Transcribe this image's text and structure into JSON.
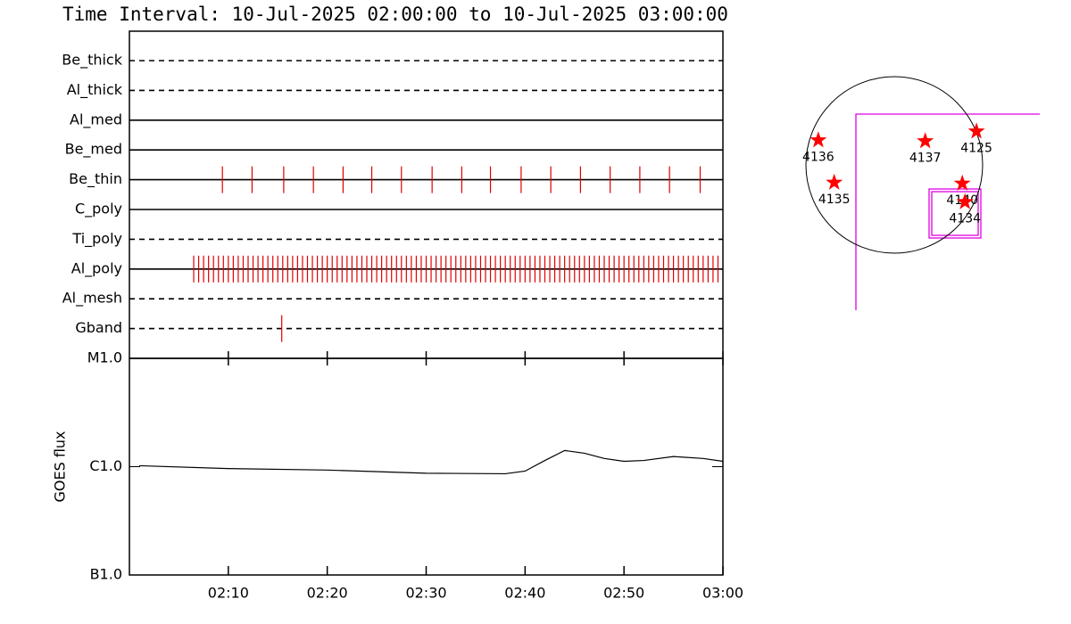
{
  "chart_data": [
    {
      "type": "timeline",
      "title": "Time Interval: 10-Jul-2025 02:00:00 to 10-Jul-2025 03:00:00",
      "xlim": [
        0,
        60
      ],
      "rows": [
        {
          "name": "Be_thick",
          "style": "dashed",
          "events": []
        },
        {
          "name": "Al_thick",
          "style": "dashed",
          "events": []
        },
        {
          "name": "Al_med",
          "style": "solid",
          "events": []
        },
        {
          "name": "Be_med",
          "style": "solid",
          "events": []
        },
        {
          "name": "Be_thin",
          "style": "solid",
          "events": [
            9.4,
            12.4,
            15.6,
            18.6,
            21.6,
            24.5,
            27.5,
            30.6,
            33.6,
            36.5,
            39.6,
            42.6,
            45.6,
            48.6,
            51.6,
            54.6,
            57.7
          ]
        },
        {
          "name": "C_poly",
          "style": "solid",
          "events": []
        },
        {
          "name": "Ti_poly",
          "style": "dashed",
          "events": []
        },
        {
          "name": "Al_poly",
          "style": "solid",
          "events": [
            6.5,
            7,
            7.5,
            8,
            8.5,
            9,
            9.5,
            10,
            10.5,
            11,
            11.5,
            12,
            12.5,
            13,
            13.5,
            14,
            14.5,
            15,
            15.5,
            16,
            16.5,
            17,
            17.5,
            18,
            18.5,
            19,
            19.5,
            20,
            20.5,
            21,
            21.5,
            22,
            22.5,
            23,
            23.5,
            24,
            24.5,
            25,
            25.5,
            26,
            26.5,
            27,
            27.5,
            28,
            28.5,
            29,
            29.5,
            30,
            30.5,
            31,
            31.5,
            32,
            32.5,
            33,
            33.5,
            34,
            34.5,
            35,
            35.5,
            36,
            36.5,
            37,
            37.5,
            38,
            38.5,
            39,
            39.5,
            40,
            40.5,
            41,
            41.5,
            42,
            42.5,
            43,
            43.5,
            44,
            44.5,
            45,
            45.5,
            46,
            46.5,
            47,
            47.5,
            48,
            48.5,
            49,
            49.5,
            50,
            50.5,
            51,
            51.5,
            52,
            52.5,
            53,
            53.5,
            54,
            54.5,
            55,
            55.5,
            56,
            56.5,
            57,
            57.5,
            58,
            58.5,
            59,
            59.5
          ]
        },
        {
          "name": "Al_mesh",
          "style": "dashed",
          "events": []
        },
        {
          "name": "Gband",
          "style": "dashed",
          "events": [
            15.4
          ]
        }
      ],
      "color": "#e00000"
    },
    {
      "type": "line",
      "ylabel": "GOES flux",
      "log_y": true,
      "xlim": [
        0,
        60
      ],
      "ylim": [
        1e-07,
        1e-05
      ],
      "yticks": [
        {
          "value": 1e-07,
          "label": "B1.0"
        },
        {
          "value": 1e-06,
          "label": "C1.0"
        },
        {
          "value": 1e-05,
          "label": "M1.0"
        }
      ],
      "xticks": [
        {
          "value": 10,
          "label": "02:10"
        },
        {
          "value": 20,
          "label": "02:20"
        },
        {
          "value": 30,
          "label": "02:30"
        },
        {
          "value": 40,
          "label": "02:40"
        },
        {
          "value": 50,
          "label": "02:50"
        },
        {
          "value": 60,
          "label": "03:00"
        }
      ],
      "x": [
        1,
        10,
        20,
        30,
        38,
        40,
        42,
        44,
        46,
        48,
        50,
        52,
        55,
        58,
        60
      ],
      "values": [
        1.02e-06,
        9.6e-07,
        9.3e-07,
        8.7e-07,
        8.6e-07,
        9.1e-07,
        1.14e-06,
        1.41e-06,
        1.33e-06,
        1.19e-06,
        1.12e-06,
        1.14e-06,
        1.24e-06,
        1.19e-06,
        1.12e-06
      ],
      "color": "#000000"
    },
    {
      "type": "scatter",
      "xlim": [
        -1,
        1
      ],
      "ylim": [
        -1,
        1
      ],
      "color": "#ff0000",
      "labels": [
        "4136",
        "4137",
        "4125",
        "4135",
        "4140",
        "4134"
      ],
      "x": [
        -0.86,
        0.35,
        0.93,
        -0.68,
        0.77,
        0.8
      ],
      "y": [
        0.28,
        0.27,
        0.38,
        -0.2,
        -0.21,
        -0.42
      ]
    }
  ]
}
